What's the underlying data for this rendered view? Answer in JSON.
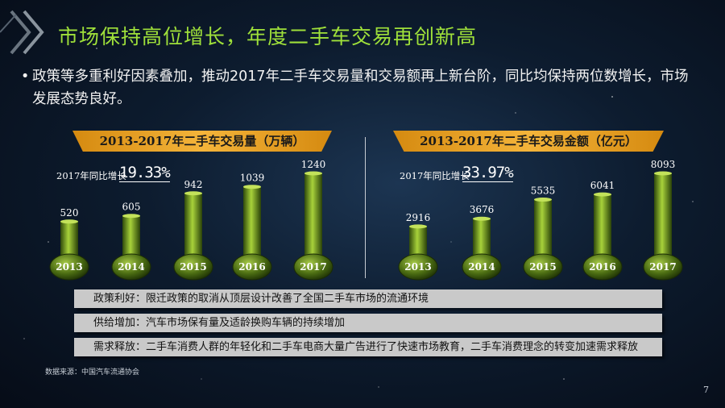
{
  "title": "市场保持高位增长，年度二手车交易再创新高",
  "bullet": "政策等多重利好因素叠加，推动2017年二手车交易量和交易额再上新台阶，同比均保持两位数增长，市场发展态势良好。",
  "bullet_marker": "•",
  "growth_label": "2017年同比增长",
  "chart_data": [
    {
      "type": "bar",
      "title": "2013-2017年二手车交易量（万辆）",
      "categories": [
        "2013",
        "2014",
        "2015",
        "2016",
        "2017"
      ],
      "values": [
        520,
        605,
        942,
        1039,
        1240
      ],
      "value_labels": [
        "520",
        "605",
        "942",
        "1039",
        "1240"
      ],
      "growth": "19.33%"
    },
    {
      "type": "bar",
      "title": "2013-2017年二手车交易金额（亿元）",
      "categories": [
        "2013",
        "2014",
        "2015",
        "2016",
        "2017"
      ],
      "values": [
        2916,
        3676,
        5535,
        6041,
        8093
      ],
      "value_labels": [
        "2916",
        "3676",
        "5535",
        "6041",
        "8093"
      ],
      "growth": "33.97%"
    }
  ],
  "factors": [
    "政策利好：限迁政策的取消从顶层设计改善了全国二手车市场的流通环境",
    "供给增加：汽车市场保有量及适龄换购车辆的持续增加",
    "需求释放：二手车消费人群的年轻化和二手车电商大量广告进行了快速市场教育，二手车消费理念的转变加速需求释放"
  ],
  "source": "数据来源：中国汽车流通协会",
  "page_number": "7",
  "colors": {
    "title": "#9fe03a",
    "bar_light": "#a8d23a",
    "bar_dark": "#2f4a0b",
    "banner": "#f0a52a"
  }
}
